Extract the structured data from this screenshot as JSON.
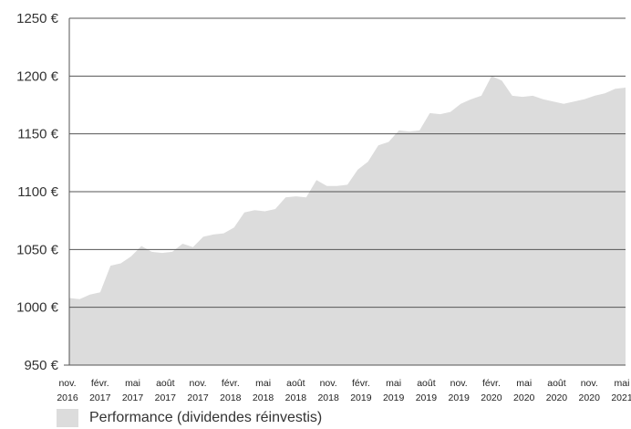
{
  "chart_data": {
    "type": "area",
    "ylim": [
      950,
      1250
    ],
    "y_ticks": [
      950,
      1000,
      1050,
      1100,
      1150,
      1200,
      1250
    ],
    "y_tick_labels": [
      "950 €",
      "1000 €",
      "1050 €",
      "1100 €",
      "1150 €",
      "1200 €",
      "1250 €"
    ],
    "x_tick_labels": [
      [
        "nov.",
        "2016"
      ],
      [
        "févr.",
        "2017"
      ],
      [
        "mai",
        "2017"
      ],
      [
        "août",
        "2017"
      ],
      [
        "nov.",
        "2017"
      ],
      [
        "févr.",
        "2018"
      ],
      [
        "mai",
        "2018"
      ],
      [
        "août",
        "2018"
      ],
      [
        "nov.",
        "2018"
      ],
      [
        "févr.",
        "2019"
      ],
      [
        "mai",
        "2019"
      ],
      [
        "août",
        "2019"
      ],
      [
        "nov.",
        "2019"
      ],
      [
        "févr.",
        "2020"
      ],
      [
        "mai",
        "2020"
      ],
      [
        "août",
        "2020"
      ],
      [
        "nov.",
        "2020"
      ],
      [
        "mai",
        "2021"
      ]
    ],
    "x_domain": [
      "2016-11",
      "2021-05"
    ],
    "grid": true,
    "legend_position": "bottom-left",
    "series": [
      {
        "name": "Performance (dividendes réinvestis)",
        "color": "#dcdcdc",
        "points": [
          [
            "2016-11",
            1008
          ],
          [
            "2016-12",
            1007
          ],
          [
            "2017-01",
            1011
          ],
          [
            "2017-02",
            1013
          ],
          [
            "2017-03",
            1036
          ],
          [
            "2017-04",
            1038
          ],
          [
            "2017-05",
            1044
          ],
          [
            "2017-06",
            1053
          ],
          [
            "2017-07",
            1048
          ],
          [
            "2017-08",
            1047
          ],
          [
            "2017-09",
            1048
          ],
          [
            "2017-10",
            1055
          ],
          [
            "2017-11",
            1052
          ],
          [
            "2017-12",
            1061
          ],
          [
            "2018-01",
            1063
          ],
          [
            "2018-02",
            1064
          ],
          [
            "2018-03",
            1069
          ],
          [
            "2018-04",
            1082
          ],
          [
            "2018-05",
            1084
          ],
          [
            "2018-06",
            1083
          ],
          [
            "2018-07",
            1085
          ],
          [
            "2018-08",
            1095
          ],
          [
            "2018-09",
            1096
          ],
          [
            "2018-10",
            1095
          ],
          [
            "2018-11",
            1110
          ],
          [
            "2018-12",
            1105
          ],
          [
            "2019-01",
            1105
          ],
          [
            "2019-02",
            1106
          ],
          [
            "2019-03",
            1119
          ],
          [
            "2019-04",
            1126
          ],
          [
            "2019-05",
            1140
          ],
          [
            "2019-06",
            1143
          ],
          [
            "2019-07",
            1153
          ],
          [
            "2019-08",
            1152
          ],
          [
            "2019-09",
            1153
          ],
          [
            "2019-10",
            1168
          ],
          [
            "2019-11",
            1167
          ],
          [
            "2019-12",
            1169
          ],
          [
            "2020-01",
            1176
          ],
          [
            "2020-02",
            1180
          ],
          [
            "2020-03",
            1183
          ],
          [
            "2020-04",
            1200
          ],
          [
            "2020-05",
            1196
          ],
          [
            "2020-06",
            1183
          ],
          [
            "2020-07",
            1182
          ],
          [
            "2020-08",
            1183
          ],
          [
            "2020-09",
            1180
          ],
          [
            "2020-10",
            1178
          ],
          [
            "2020-11",
            1176
          ],
          [
            "2020-12",
            1178
          ],
          [
            "2021-01",
            1180
          ],
          [
            "2021-02",
            1183
          ],
          [
            "2021-03",
            1185
          ],
          [
            "2021-04",
            1189
          ],
          [
            "2021-05",
            1190
          ]
        ]
      }
    ]
  }
}
